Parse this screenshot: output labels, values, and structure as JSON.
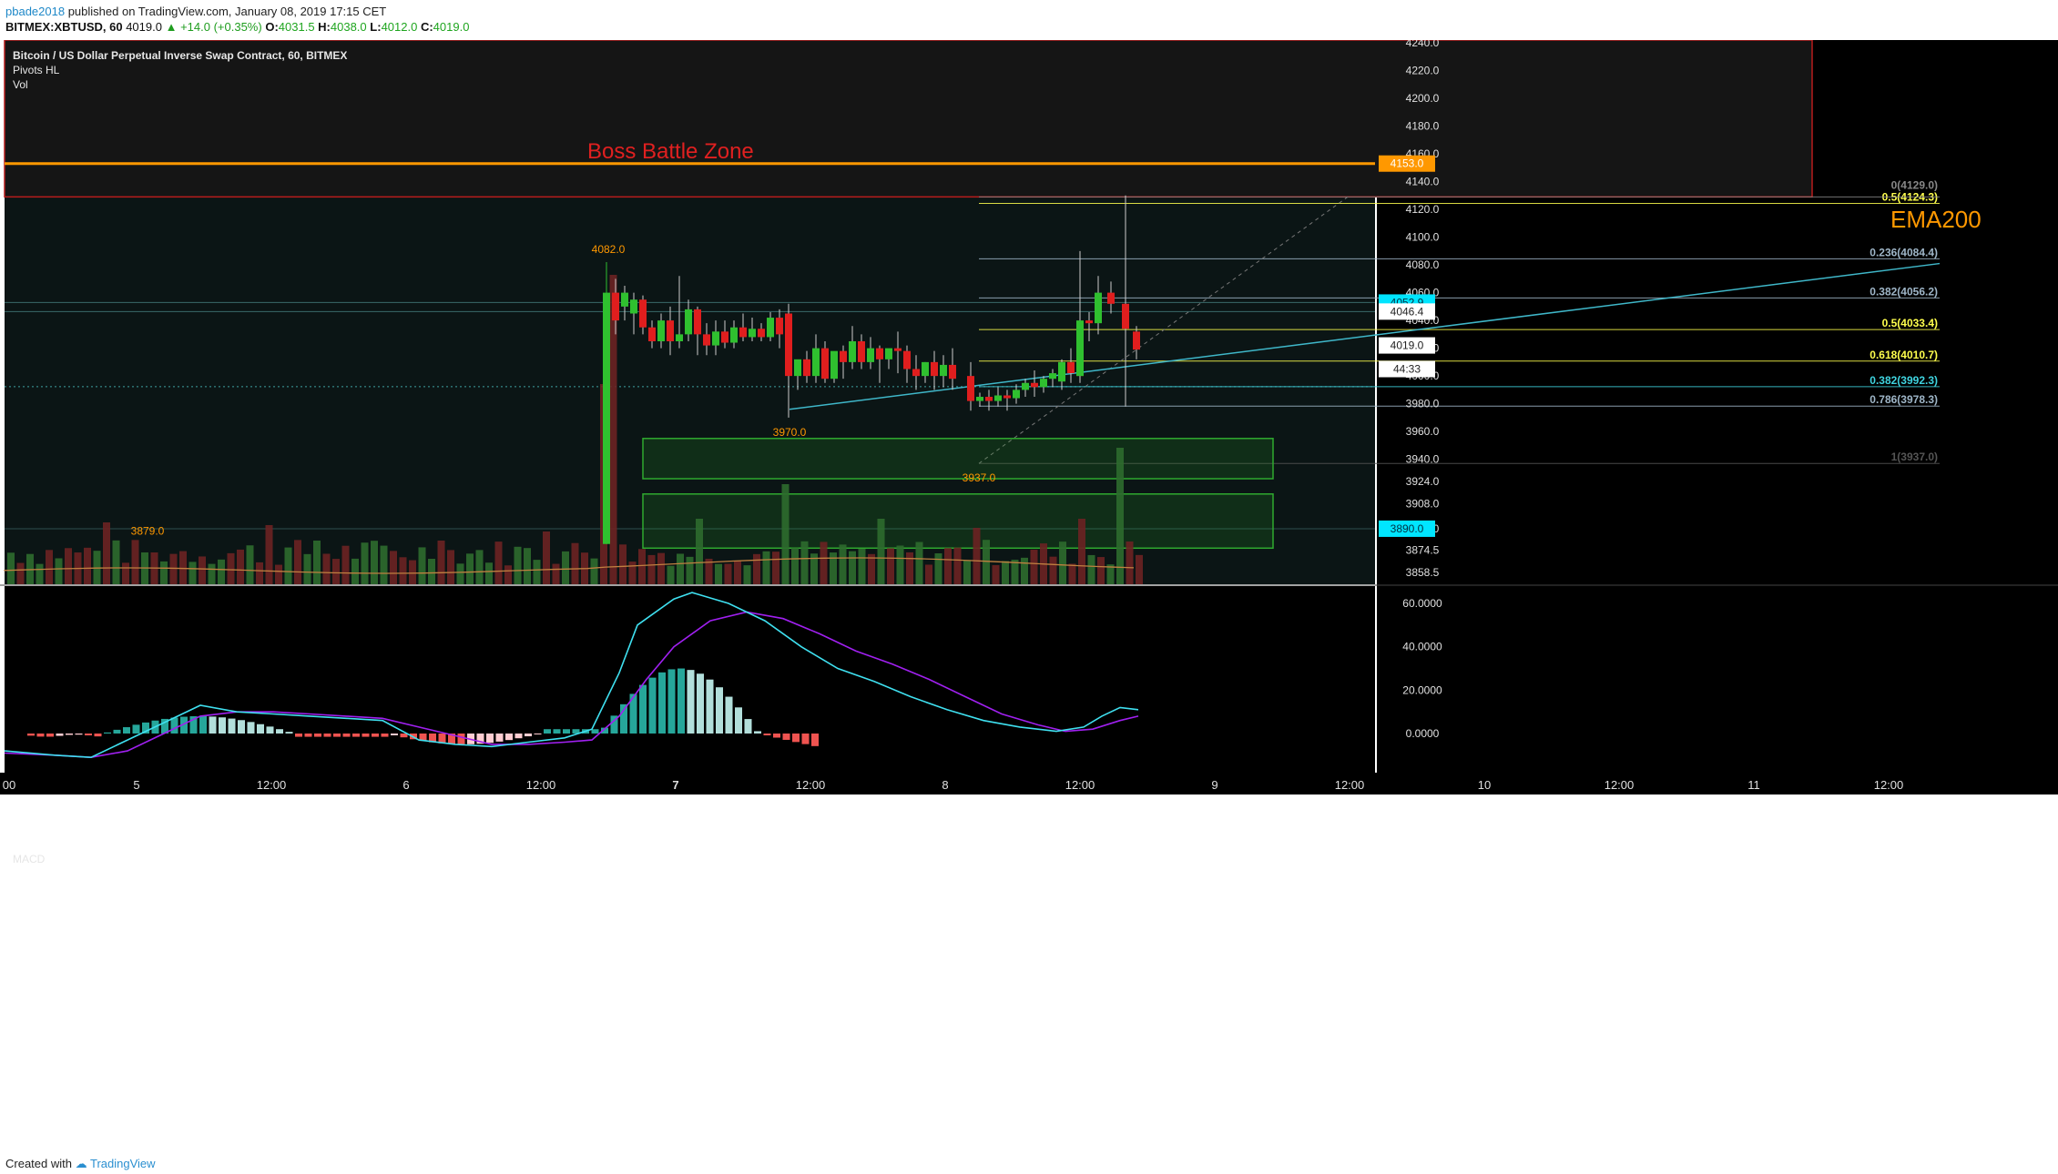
{
  "header": {
    "author": "pbade2018",
    "published": "published on TradingView.com, January 08, 2019 17:15 CET",
    "symbol": "BITMEX:XBTUSD, 60",
    "last_price": "4019.0",
    "change": "▲ +14.0 (+0.35%)",
    "open_label": "O:",
    "open_value": "4031.5",
    "high_label": "H:",
    "high_value": "4038.0",
    "low_label": "L:",
    "low_value": "4012.0",
    "close_label": "C:",
    "close_value": "4019.0"
  },
  "legend": {
    "title": "Bitcoin / US Dollar Perpetual Inverse Swap Contract, 60, BITMEX",
    "study1": "Pivots HL",
    "study2": "Vol"
  },
  "macd_label": "MACD",
  "annotations": {
    "zone_label": "Boss Battle Zone",
    "ema_label": "EMA200",
    "pivots": [
      "4082.0",
      "3970.0",
      "3937.0",
      "3879.0"
    ]
  },
  "fib_levels": [
    {
      "label": "0.5(4124.3)",
      "price": 4124.3,
      "color": "#ffff4d"
    },
    {
      "label": "0(4129.0)",
      "price": 4129.0,
      "color": "#888888"
    },
    {
      "label": "0.236(4084.4)",
      "price": 4084.4,
      "color": "#9fb6c8"
    },
    {
      "label": "0.382(4056.2)",
      "price": 4056.2,
      "color": "#9fb6c8"
    },
    {
      "label": "0.5(4033.4)",
      "price": 4033.4,
      "color": "#ffff4d"
    },
    {
      "label": "0.618(4010.7)",
      "price": 4010.7,
      "color": "#ffff4d"
    },
    {
      "label": "0.382(3992.3)",
      "price": 3992.3,
      "color": "#3fd4e0"
    },
    {
      "label": "0.786(3978.3)",
      "price": 3978.3,
      "color": "#9fb6c8"
    },
    {
      "label": "1(3937.0)",
      "price": 3937.0,
      "color": "#555555"
    }
  ],
  "price_axis": {
    "ticks": [
      "4240.0",
      "4220.0",
      "4200.0",
      "4180.0",
      "4160.0",
      "4140.0",
      "4120.0",
      "4100.0",
      "4080.0",
      "4060.0",
      "4040.0",
      "4020.0",
      "4000.0",
      "3980.0",
      "3960.0",
      "3940.0",
      "3924.0",
      "3908.0",
      "3890.0",
      "3874.5",
      "3858.5"
    ],
    "markers": [
      {
        "label": "4153.0",
        "bg": "#ff9800",
        "fg": "#ffffff"
      },
      {
        "label": "4052.9",
        "bg": "#00e5ff",
        "fg": "#003040"
      },
      {
        "label": "4046.4",
        "bg": "#ffffff",
        "fg": "#222222"
      },
      {
        "label": "4019.0",
        "bg": "#ffffff",
        "fg": "#222222"
      },
      {
        "label": "44:33",
        "bg": "#ffffff",
        "fg": "#222222"
      },
      {
        "label": "3890.0",
        "bg": "#00e5ff",
        "fg": "#003040"
      }
    ]
  },
  "macd_axis": {
    "ticks": [
      "60.0000",
      "40.0000",
      "20.0000",
      "0.0000"
    ]
  },
  "time_axis": {
    "ticks": [
      "00",
      "5",
      "12:00",
      "6",
      "12:00",
      "7",
      "12:00",
      "8",
      "12:00",
      "9",
      "12:00",
      "10",
      "12:00",
      "11",
      "12:00"
    ]
  },
  "footer": {
    "created": "Created with",
    "brand": "TradingView"
  },
  "colors": {
    "background": "#0b1515",
    "zone_fill": "#151515",
    "zone_border": "#b71c1c",
    "ema": "#ff9800",
    "trendline": "#3fb7c9",
    "bull": "#2fc02f",
    "bear": "#e01e1e",
    "macd_line": "#3fe0f0",
    "signal_line": "#a020f0"
  }
}
